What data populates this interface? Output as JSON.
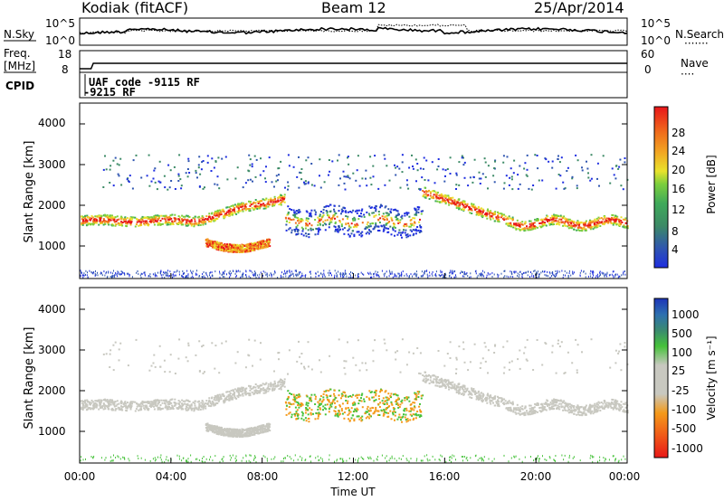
{
  "header": {
    "station": "Kodiak (fitACF)",
    "beam": "Beam 12",
    "date": "25/Apr/2014"
  },
  "top_panels": {
    "nsky_label": "N.Sky",
    "nsearch_label": "N.Search",
    "nsearch_marker": "·······",
    "ylabel_exp_top": "10^5",
    "ylabel_exp_bottom": "10^0",
    "freq_label_1": "Freq.",
    "freq_label_2": "[MHz]",
    "freq_ticks": [
      "18",
      "8"
    ],
    "nave_label": "Nave",
    "nave_marker": "····",
    "nave_ticks": [
      "60",
      "0"
    ],
    "cpid_label": "CPID",
    "cpid_line1": "UAF code -9115 RF",
    "cpid_line2": "-9215 RF"
  },
  "power_panel": {
    "ylabel": "Slant Range [km]",
    "yticks": [
      "4000",
      "3000",
      "2000",
      "1000"
    ],
    "colorbar_label": "Power [dB]",
    "colorbar_ticks": [
      "28",
      "24",
      "20",
      "16",
      "12",
      "8",
      "4"
    ],
    "colors": [
      "#1e2ee0",
      "#2f55b0",
      "#3c8a66",
      "#3faa5a",
      "#7ccf3c",
      "#e9e22c",
      "#f2a522",
      "#f06d1c",
      "#e8161a"
    ]
  },
  "velocity_panel": {
    "ylabel": "Slant Range [km]",
    "yticks": [
      "4000",
      "3000",
      "2000",
      "1000"
    ],
    "colorbar_label": "Velocity [m s⁻¹]",
    "colorbar_ticks": [
      "1000",
      "500",
      "100",
      "25",
      "-25",
      "-100",
      "-500",
      "-1000"
    ],
    "colors": [
      "#1c34b8",
      "#2d6fb0",
      "#3a8a70",
      "#46c23a",
      "#c8c8c0",
      "#c8c8c0",
      "#f49a1a",
      "#f05a18",
      "#e81818"
    ]
  },
  "xaxis": {
    "ticks": [
      "00:00",
      "04:00",
      "08:00",
      "12:00",
      "16:00",
      "20:00",
      "00:00"
    ],
    "label": "Time UT"
  },
  "chart_data": {
    "type": "heatmap",
    "x_range_hours": [
      0,
      24
    ],
    "y_range_km": [
      0,
      4500
    ],
    "power_band_traces": [
      {
        "x": [
          0,
          1,
          2,
          3,
          4,
          5,
          6,
          7,
          8,
          9
        ],
        "y": [
          1500,
          1580,
          1560,
          1540,
          1580,
          1560,
          1640,
          1760,
          1900,
          2100
        ]
      },
      {
        "x": [
          15,
          16,
          17,
          18,
          19,
          20,
          21,
          22,
          23,
          24
        ],
        "y": [
          2250,
          2050,
          1850,
          1650,
          1450,
          1380,
          1500,
          1580,
          1550,
          1470
        ]
      }
    ]
  }
}
